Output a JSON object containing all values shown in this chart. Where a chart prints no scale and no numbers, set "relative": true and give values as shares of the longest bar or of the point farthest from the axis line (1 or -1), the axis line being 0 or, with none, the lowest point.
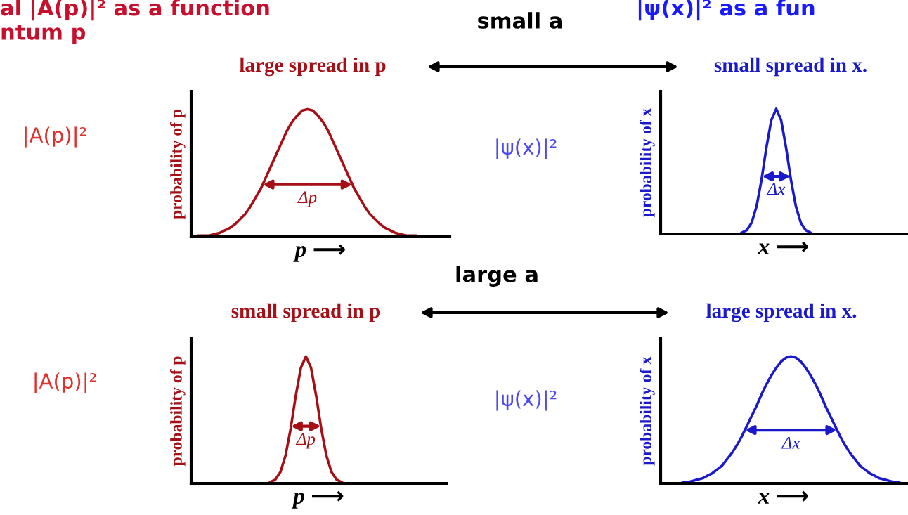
{
  "chart_data": [
    {
      "type": "line",
      "relative": true,
      "title": "large spread in p",
      "xlabel": "p ⟶",
      "ylabel": "probability of p",
      "annotations": [
        "small a",
        "al |A(p)|² as a function",
        "ntum p",
        "|A(p)|²",
        "Δp"
      ],
      "categories": [
        null,
        null,
        null,
        null,
        null,
        null,
        null,
        null,
        null,
        null,
        null,
        null,
        null,
        null,
        null,
        null,
        null,
        null,
        null,
        null,
        null,
        null,
        null,
        null,
        null,
        null,
        null,
        null,
        null,
        null,
        null,
        null,
        null,
        null,
        null,
        null,
        null,
        null,
        null,
        null,
        null,
        null,
        null,
        null,
        null,
        null,
        null,
        null,
        null,
        null
      ],
      "series": [
        {
          "color": "#a50f15",
          "values": [
            null,
            0.01,
            0.01,
            0.01,
            0.02,
            0.03,
            0.05,
            0.07,
            0.1,
            0.14,
            0.18,
            0.24,
            0.31,
            0.38,
            0.47,
            0.56,
            0.65,
            0.74,
            0.83,
            0.9,
            0.95,
            0.99,
            1,
            0.99,
            0.95,
            0.9,
            0.83,
            0.74,
            0.65,
            0.56,
            0.47,
            0.38,
            0.31,
            0.24,
            0.18,
            0.14,
            0.1,
            0.07,
            0.05,
            0.03,
            0.02,
            0.01,
            0.01,
            0.01,
            null,
            null,
            null,
            null,
            null,
            null
          ]
        }
      ]
    },
    {
      "type": "line",
      "relative": true,
      "title": "small spread in x.",
      "xlabel": "x ⟶",
      "ylabel": "probability of x",
      "annotations": [
        "|ψ(x)|² as a fun",
        "|ψ(x)|²",
        "Δx"
      ],
      "categories": [
        null,
        null,
        null,
        null,
        null,
        null,
        null,
        null,
        null,
        null,
        null,
        null,
        null,
        null,
        null,
        null,
        null,
        null,
        null,
        null,
        null,
        null,
        null,
        null,
        null,
        null,
        null,
        null,
        null,
        null,
        null,
        null,
        null,
        null,
        null,
        null,
        null,
        null,
        null,
        null,
        null,
        null,
        null,
        null,
        null,
        null,
        null,
        null,
        null,
        null
      ],
      "series": [
        {
          "color": "#1a1acc",
          "values": [
            null,
            null,
            null,
            null,
            null,
            null,
            null,
            null,
            null,
            null,
            null,
            null,
            null,
            null,
            null,
            null,
            0.01,
            0.03,
            0.09,
            0.22,
            0.43,
            0.69,
            0.91,
            1,
            0.91,
            0.69,
            0.43,
            0.22,
            0.09,
            0.03,
            0.01,
            null,
            null,
            null,
            null,
            null,
            null,
            null,
            null,
            null,
            null,
            null,
            null,
            null,
            null,
            null,
            null,
            null,
            null,
            null
          ]
        }
      ]
    },
    {
      "type": "line",
      "relative": true,
      "title": "small spread in p",
      "xlabel": "p ⟶",
      "ylabel": "probability of p",
      "annotations": [
        "large a",
        "|A(p)|²",
        "Δp"
      ],
      "categories": [
        null,
        null,
        null,
        null,
        null,
        null,
        null,
        null,
        null,
        null,
        null,
        null,
        null,
        null,
        null,
        null,
        null,
        null,
        null,
        null,
        null,
        null,
        null,
        null,
        null,
        null,
        null,
        null,
        null,
        null,
        null,
        null,
        null,
        null,
        null,
        null,
        null,
        null,
        null,
        null,
        null,
        null,
        null,
        null,
        null,
        null,
        null,
        null,
        null,
        null
      ],
      "series": [
        {
          "color": "#a50f15",
          "values": [
            null,
            null,
            null,
            null,
            null,
            null,
            null,
            null,
            null,
            null,
            null,
            null,
            null,
            null,
            null,
            0.01,
            0.03,
            0.09,
            0.22,
            0.43,
            0.69,
            0.91,
            1,
            0.91,
            0.69,
            0.43,
            0.22,
            0.09,
            0.03,
            0.01,
            null,
            null,
            null,
            null,
            null,
            null,
            null,
            null,
            null,
            null,
            null,
            null,
            null,
            null,
            null,
            null,
            null,
            null,
            null,
            null
          ]
        }
      ]
    },
    {
      "type": "line",
      "relative": true,
      "title": "large spread in x.",
      "xlabel": "x ⟶",
      "ylabel": "probability of x",
      "annotations": [
        "|ψ(x)|²",
        "Δx"
      ],
      "categories": [
        null,
        null,
        null,
        null,
        null,
        null,
        null,
        null,
        null,
        null,
        null,
        null,
        null,
        null,
        null,
        null,
        null,
        null,
        null,
        null,
        null,
        null,
        null,
        null,
        null,
        null,
        null,
        null,
        null,
        null,
        null,
        null,
        null,
        null,
        null,
        null,
        null,
        null,
        null,
        null,
        null,
        null,
        null,
        null,
        null,
        null,
        null,
        null,
        null,
        null
      ],
      "series": [
        {
          "color": "#1a1acc",
          "values": [
            null,
            null,
            null,
            null,
            0.01,
            0.01,
            0.02,
            0.03,
            0.04,
            0.06,
            0.08,
            0.11,
            0.14,
            0.19,
            0.24,
            0.3,
            0.37,
            0.45,
            0.53,
            0.61,
            0.7,
            0.78,
            0.85,
            0.91,
            0.96,
            0.99,
            1,
            0.99,
            0.96,
            0.91,
            0.85,
            0.78,
            0.7,
            0.61,
            0.53,
            0.45,
            0.37,
            0.3,
            0.24,
            0.19,
            0.14,
            0.11,
            0.08,
            0.06,
            0.04,
            0.03,
            0.02,
            0.01,
            0.01,
            null
          ]
        }
      ]
    }
  ]
}
